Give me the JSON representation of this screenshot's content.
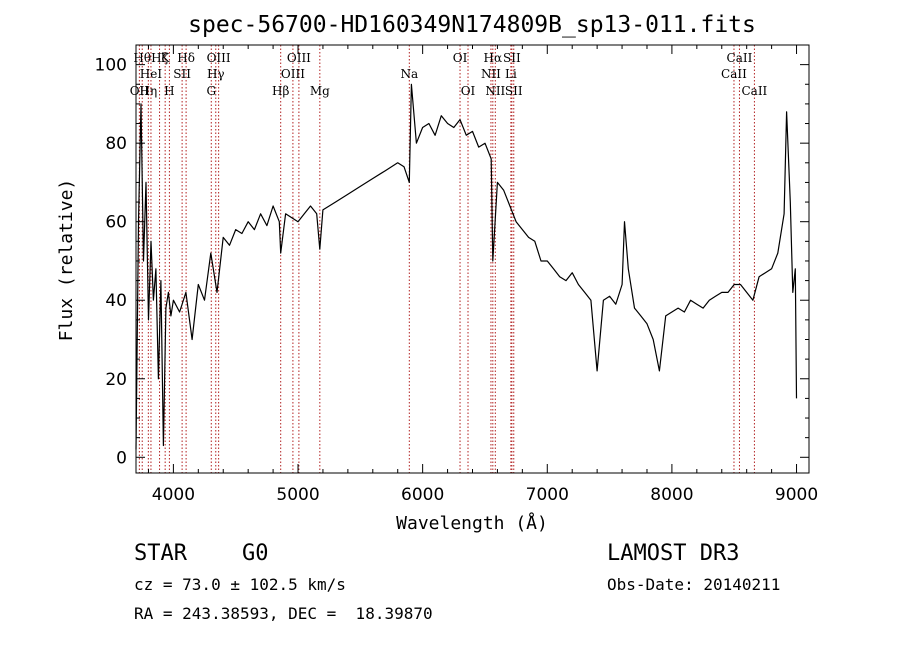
{
  "chart_data": {
    "type": "line",
    "title": "spec-56700-HD160349N174809B_sp13-011.fits",
    "xlabel": "Wavelength (Å)",
    "ylabel": "Flux (relative)",
    "xlim": [
      3700,
      9100
    ],
    "ylim": [
      -4,
      105
    ],
    "xticks": [
      4000,
      5000,
      6000,
      7000,
      8000,
      9000
    ],
    "yticks": [
      0,
      20,
      40,
      60,
      80,
      100
    ],
    "grid": false,
    "series": [
      {
        "x": [
          3700,
          3720,
          3740,
          3760,
          3780,
          3800,
          3820,
          3840,
          3860,
          3880,
          3900,
          3920,
          3940,
          3960,
          3980,
          4000,
          4050,
          4100,
          4150,
          4200,
          4250,
          4300,
          4350,
          4400,
          4450,
          4500,
          4550,
          4600,
          4650,
          4700,
          4750,
          4800,
          4850,
          4861,
          4900,
          4950,
          5000,
          5050,
          5100,
          5150,
          5175,
          5200,
          5300,
          5400,
          5500,
          5600,
          5700,
          5800,
          5850,
          5893,
          5910,
          5950,
          6000,
          6050,
          6100,
          6150,
          6200,
          6250,
          6300,
          6350,
          6400,
          6450,
          6500,
          6550,
          6563,
          6600,
          6650,
          6700,
          6750,
          6800,
          6850,
          6900,
          6950,
          7000,
          7050,
          7100,
          7150,
          7200,
          7250,
          7300,
          7350,
          7400,
          7450,
          7500,
          7550,
          7600,
          7620,
          7650,
          7700,
          7750,
          7800,
          7850,
          7900,
          7950,
          8000,
          8050,
          8100,
          8150,
          8200,
          8250,
          8300,
          8350,
          8400,
          8450,
          8500,
          8550,
          8600,
          8650,
          8700,
          8750,
          8800,
          8850,
          8900,
          8920,
          8950,
          8970,
          8990,
          9000
        ],
        "y": [
          2,
          60,
          90,
          50,
          70,
          35,
          55,
          40,
          48,
          20,
          45,
          3,
          38,
          42,
          36,
          40,
          37,
          42,
          30,
          44,
          40,
          52,
          42,
          56,
          54,
          58,
          57,
          60,
          58,
          62,
          59,
          64,
          60,
          52,
          62,
          61,
          60,
          62,
          64,
          62,
          53,
          63,
          65,
          67,
          69,
          71,
          73,
          75,
          74,
          70,
          95,
          80,
          84,
          85,
          82,
          87,
          85,
          84,
          86,
          82,
          83,
          79,
          80,
          76,
          50,
          70,
          68,
          64,
          60,
          58,
          56,
          55,
          50,
          50,
          48,
          46,
          45,
          47,
          44,
          42,
          40,
          22,
          40,
          41,
          39,
          44,
          60,
          48,
          38,
          36,
          34,
          30,
          22,
          36,
          37,
          38,
          37,
          40,
          39,
          38,
          40,
          41,
          42,
          42,
          44,
          44,
          42,
          40,
          46,
          47,
          48,
          52,
          62,
          88,
          65,
          42,
          48,
          15
        ]
      }
    ],
    "spectral_lines": [
      {
        "wave": 3727,
        "label": "OII",
        "row": 3
      },
      {
        "wave": 3750,
        "label": "Hθ",
        "row": 1
      },
      {
        "wave": 3799,
        "label": "Hη",
        "row": 3
      },
      {
        "wave": 3820,
        "label": "HeI",
        "row": 2
      },
      {
        "wave": 3889,
        "label": "Hζ",
        "row": 1
      },
      {
        "wave": 3934,
        "label": "K",
        "row": 1
      },
      {
        "wave": 3968,
        "label": "H",
        "row": 3
      },
      {
        "wave": 4070,
        "label": "SII",
        "row": 2
      },
      {
        "wave": 4102,
        "label": "Hδ",
        "row": 1
      },
      {
        "wave": 4304,
        "label": "G",
        "row": 3
      },
      {
        "wave": 4340,
        "label": "Hγ",
        "row": 2
      },
      {
        "wave": 4363,
        "label": "OIII",
        "row": 1
      },
      {
        "wave": 4861,
        "label": "Hβ",
        "row": 3
      },
      {
        "wave": 4959,
        "label": "OIII",
        "row": 2
      },
      {
        "wave": 5007,
        "label": "OIII",
        "row": 1
      },
      {
        "wave": 5175,
        "label": "Mg",
        "row": 3
      },
      {
        "wave": 5893,
        "label": "Na",
        "row": 2
      },
      {
        "wave": 6300,
        "label": "OI",
        "row": 1
      },
      {
        "wave": 6364,
        "label": "OI",
        "row": 3
      },
      {
        "wave": 6548,
        "label": "NII",
        "row": 2
      },
      {
        "wave": 6563,
        "label": "Hα",
        "row": 1
      },
      {
        "wave": 6583,
        "label": "NII",
        "row": 3
      },
      {
        "wave": 6708,
        "label": "Li",
        "row": 2
      },
      {
        "wave": 6716,
        "label": "SII",
        "row": 1
      },
      {
        "wave": 6731,
        "label": "SII",
        "row": 3
      },
      {
        "wave": 8498,
        "label": "CaII",
        "row": 2
      },
      {
        "wave": 8542,
        "label": "CaII",
        "row": 1
      },
      {
        "wave": 8662,
        "label": "CaII",
        "row": 3
      }
    ]
  },
  "info": {
    "object_class": "STAR",
    "subclass": "G0",
    "survey": "LAMOST DR3",
    "cz": "cz = 73.0 ± 102.5 km/s",
    "obs_date": "Obs-Date: 20140211",
    "coords": "RA = 243.38593, DEC =  18.39870"
  },
  "colors": {
    "line_marker": "#b22222",
    "spectrum": "#000000"
  }
}
